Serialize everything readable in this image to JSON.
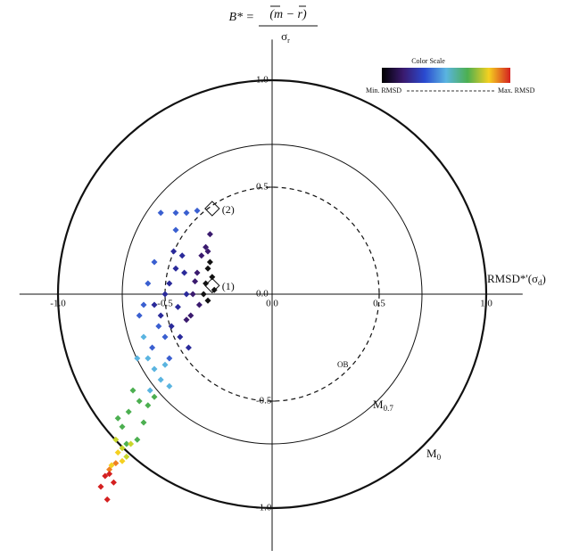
{
  "chart_data": {
    "type": "scatter",
    "y_label": {
      "lhs": "B* =",
      "numerator": "(m − r)",
      "denominator": "σ",
      "denominator_sub": "r"
    },
    "x_label": {
      "main": "RMSD*'(σ",
      "sub": "d",
      "close": ")"
    },
    "xlim": [
      -1.18,
      1.17
    ],
    "ylim": [
      -1.2,
      1.19
    ],
    "xticks": [
      {
        "value": -1,
        "label": "-1.0"
      },
      {
        "value": -0.5,
        "label": "-0.5"
      },
      {
        "value": 0,
        "label": "0.0"
      },
      {
        "value": 0.5,
        "label": "0.5"
      },
      {
        "value": 1,
        "label": "1.0"
      }
    ],
    "yticks": [
      {
        "value": 1,
        "label": "1.0"
      },
      {
        "value": 0.5,
        "label": "0.5"
      },
      {
        "value": 0,
        "label": "0.0"
      },
      {
        "value": -0.5,
        "label": "-0.5"
      },
      {
        "value": -1,
        "label": "-1.0"
      }
    ],
    "circles": [
      {
        "r": 1,
        "main": "M",
        "sub": "0",
        "style": "thick"
      },
      {
        "r": 0.7,
        "main": "M",
        "sub": "0.7",
        "style": "thin"
      },
      {
        "r": 0.5,
        "main": "OB",
        "style": "dashed"
      }
    ],
    "series": [
      {
        "color": "#111111",
        "x": [
          -0.3,
          -0.28,
          -0.31,
          -0.29,
          -0.32,
          -0.3,
          -0.27
        ],
        "y": [
          0.12,
          0.08,
          0.05,
          0.15,
          0.0,
          -0.03,
          0.02
        ]
      },
      {
        "color": "#3a1a6e",
        "x": [
          -0.29,
          -0.31,
          -0.33,
          -0.35,
          -0.3,
          -0.36,
          -0.34,
          -0.38,
          -0.4,
          -0.37
        ],
        "y": [
          0.28,
          0.22,
          0.18,
          0.1,
          0.2,
          0.06,
          -0.05,
          -0.1,
          -0.12,
          0.0
        ]
      },
      {
        "color": "#2a2a9a",
        "x": [
          -0.42,
          -0.45,
          -0.48,
          -0.4,
          -0.44,
          -0.5,
          -0.47,
          -0.43,
          -0.52,
          -0.55,
          -0.39,
          -0.41,
          -0.46
        ],
        "y": [
          0.18,
          0.12,
          0.05,
          0.0,
          -0.06,
          0.0,
          -0.15,
          -0.2,
          -0.1,
          -0.05,
          -0.25,
          0.1,
          0.2
        ]
      },
      {
        "color": "#3a5fd0",
        "x": [
          -0.55,
          -0.58,
          -0.6,
          -0.53,
          -0.5,
          -0.56,
          -0.62,
          -0.48,
          -0.45,
          -0.52,
          -0.4,
          -0.35,
          -0.45
        ],
        "y": [
          0.15,
          0.05,
          -0.05,
          -0.15,
          -0.2,
          -0.25,
          -0.1,
          -0.3,
          0.38,
          0.38,
          0.38,
          0.39,
          0.3
        ]
      },
      {
        "color": "#5ab4e0",
        "x": [
          -0.6,
          -0.58,
          -0.55,
          -0.52,
          -0.57,
          -0.63,
          -0.5,
          -0.48
        ],
        "y": [
          -0.2,
          -0.3,
          -0.35,
          -0.4,
          -0.45,
          -0.3,
          -0.33,
          -0.43
        ]
      },
      {
        "color": "#4caf50",
        "x": [
          -0.65,
          -0.62,
          -0.58,
          -0.6,
          -0.67,
          -0.7,
          -0.63,
          -0.55,
          -0.72,
          -0.68
        ],
        "y": [
          -0.45,
          -0.5,
          -0.52,
          -0.6,
          -0.55,
          -0.62,
          -0.68,
          -0.48,
          -0.58,
          -0.7
        ]
      },
      {
        "color": "#c8d62a",
        "x": [
          -0.66,
          -0.7,
          -0.73,
          -0.68
        ],
        "y": [
          -0.7,
          -0.72,
          -0.68,
          -0.76
        ]
      },
      {
        "color": "#f5d020",
        "x": [
          -0.72,
          -0.7,
          -0.75
        ],
        "y": [
          -0.74,
          -0.78,
          -0.8
        ]
      },
      {
        "color": "#f08020",
        "x": [
          -0.76,
          -0.73
        ],
        "y": [
          -0.82,
          -0.79
        ]
      },
      {
        "color": "#d42020",
        "x": [
          -0.78,
          -0.74,
          -0.8,
          -0.76,
          -0.77
        ],
        "y": [
          -0.85,
          -0.88,
          -0.9,
          -0.84,
          -0.96
        ]
      }
    ],
    "annotations": [
      {
        "label": "(1)",
        "x": -0.28,
        "y": 0.04
      },
      {
        "label": "(2)",
        "x": -0.28,
        "y": 0.4
      }
    ],
    "color_scale": {
      "title": "Color Scale",
      "min_label": "Min. RMSD",
      "max_label": "Max. RMSD",
      "colors": [
        "#000000",
        "#3a1a6e",
        "#2a4ad0",
        "#5ab4e0",
        "#4caf50",
        "#f5d020",
        "#d42020"
      ]
    }
  }
}
